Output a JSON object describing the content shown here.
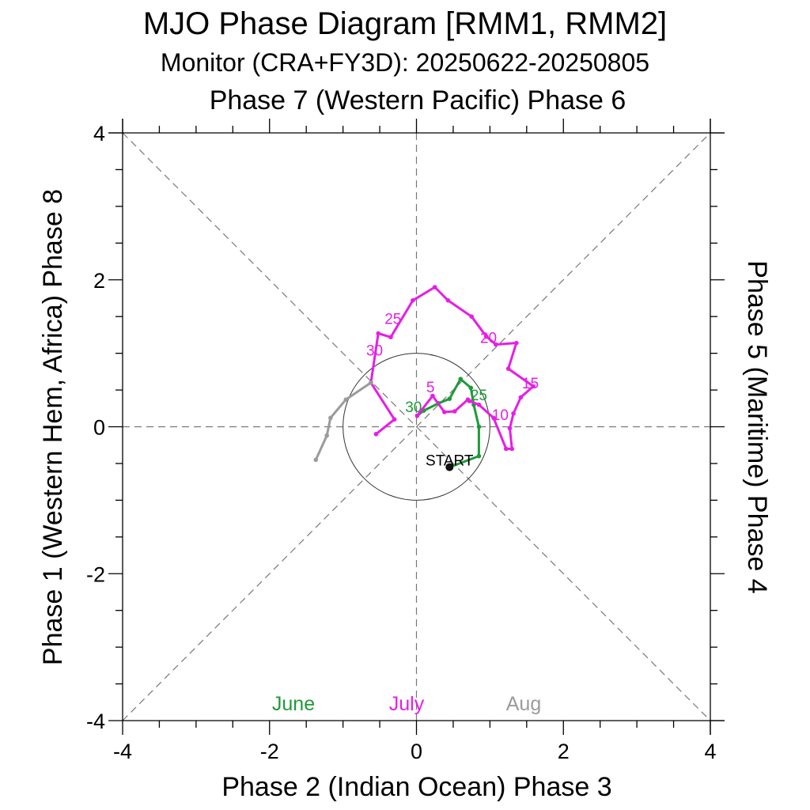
{
  "chart_data": {
    "type": "line",
    "title": "MJO Phase Diagram [RMM1, RMM2]",
    "subtitle": "Monitor (CRA+FY3D): 20250622-20250805",
    "top_label": "Phase 7 (Western Pacific) Phase 6",
    "bottom_label": "Phase 2 (Indian Ocean) Phase 3",
    "left_label": "Phase 1 (Western Hem, Africa) Phase 8",
    "right_label": "Phase 5 (Maritime) Phase 4",
    "xlim": [
      -4,
      4
    ],
    "ylim": [
      -4,
      4
    ],
    "x_ticks": [
      {
        "value": -4,
        "label": "-4"
      },
      {
        "value": -2,
        "label": "-2"
      },
      {
        "value": 0,
        "label": "0"
      },
      {
        "value": 2,
        "label": "2"
      },
      {
        "value": 4,
        "label": "4"
      }
    ],
    "y_ticks": [
      {
        "value": -4,
        "label": "-4"
      },
      {
        "value": -2,
        "label": "-2"
      },
      {
        "value": 0,
        "label": "0"
      },
      {
        "value": 2,
        "label": "2"
      },
      {
        "value": 4,
        "label": "4"
      }
    ],
    "unit_circle_radius": 1,
    "start": {
      "label": "START",
      "x": 0.45,
      "y": -0.55
    },
    "series": [
      {
        "name": "June",
        "color": "#1f9a3a",
        "points": [
          [
            0.45,
            -0.55
          ],
          [
            0.85,
            -0.4
          ],
          [
            0.85,
            0.0
          ],
          [
            0.78,
            0.3
          ],
          [
            0.74,
            0.53
          ],
          [
            0.6,
            0.65
          ],
          [
            0.45,
            0.38
          ],
          [
            0.3,
            0.32
          ],
          [
            0.1,
            0.22
          ],
          [
            0.01,
            0.15
          ]
        ],
        "day_labels": [
          {
            "text": "25",
            "x": 0.85,
            "y": 0.36
          },
          {
            "text": "30",
            "x": -0.04,
            "y": 0.2
          }
        ]
      },
      {
        "name": "July",
        "color": "#e61ee6",
        "points": [
          [
            0.01,
            0.15
          ],
          [
            0.22,
            0.42
          ],
          [
            0.38,
            0.2
          ],
          [
            0.52,
            0.21
          ],
          [
            0.7,
            0.37
          ],
          [
            0.72,
            0.35
          ],
          [
            0.85,
            0.3
          ],
          [
            1.05,
            0.12
          ],
          [
            1.22,
            -0.3
          ],
          [
            1.3,
            -0.3
          ],
          [
            1.27,
            -0.02
          ],
          [
            1.32,
            0.18
          ],
          [
            1.42,
            0.4
          ],
          [
            1.59,
            0.55
          ],
          [
            1.25,
            0.79
          ],
          [
            1.36,
            1.14
          ],
          [
            1.08,
            1.12
          ],
          [
            0.95,
            1.23
          ],
          [
            0.75,
            1.5
          ],
          [
            0.43,
            1.72
          ],
          [
            0.25,
            1.9
          ],
          [
            -0.05,
            1.72
          ],
          [
            -0.35,
            1.22
          ],
          [
            -0.52,
            1.27
          ],
          [
            -0.62,
            0.6
          ],
          [
            -0.3,
            0.1
          ],
          [
            -0.55,
            -0.1
          ]
        ],
        "day_labels": [
          {
            "text": "5",
            "x": 0.19,
            "y": 0.47
          },
          {
            "text": "10",
            "x": 1.14,
            "y": 0.09
          },
          {
            "text": "15",
            "x": 1.55,
            "y": 0.52
          },
          {
            "text": "20",
            "x": 0.98,
            "y": 1.14
          },
          {
            "text": "25",
            "x": -0.32,
            "y": 1.4
          },
          {
            "text": "30",
            "x": -0.57,
            "y": 0.97
          }
        ]
      },
      {
        "name": "Aug",
        "color": "#9b9b9b",
        "points": [
          [
            -0.62,
            0.6
          ],
          [
            -0.96,
            0.37
          ],
          [
            -1.17,
            0.12
          ],
          [
            -1.22,
            -0.12
          ],
          [
            -1.37,
            -0.45
          ]
        ],
        "day_labels": []
      }
    ],
    "legend": [
      {
        "text": "June",
        "color": "#1f9a3a"
      },
      {
        "text": "July",
        "color": "#e61ee6"
      },
      {
        "text": "Aug",
        "color": "#9b9b9b"
      }
    ]
  }
}
